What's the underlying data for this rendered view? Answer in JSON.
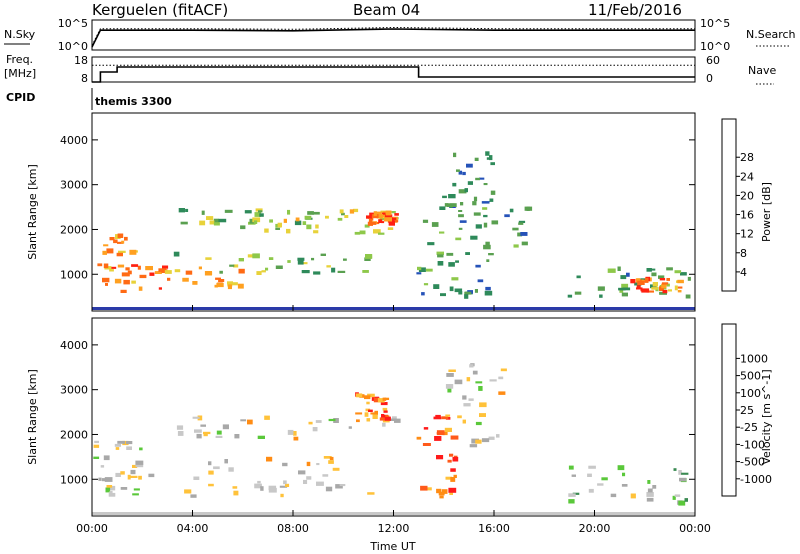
{
  "header": {
    "radar": "Kerguelen (fitACF)",
    "beam": "Beam 04",
    "date": "11/Feb/2016"
  },
  "strip_labels": {
    "nsky": "N.Sky",
    "nsearch": "N.Search",
    "freq": "Freq.",
    "freq_unit": "[MHz]",
    "nave": "Nave",
    "cpid": "CPID",
    "cpid_value": "themis 3300"
  },
  "strip_ticks": {
    "noise_left": [
      "10^5",
      "10^0"
    ],
    "noise_right": [
      "10^5",
      "10^0"
    ],
    "freq_left": [
      "18",
      "8"
    ],
    "freq_right": [
      "60",
      "0"
    ]
  },
  "colors": {
    "power_scale": [
      "#1a1aff",
      "#2552b8",
      "#2e8a5a",
      "#5aa050",
      "#8ec84a",
      "#e8d23a",
      "#ffa020",
      "#ff6a14",
      "#ff2010"
    ],
    "velocity_scale": [
      "#ff1a1a",
      "#ff5a1a",
      "#ff8c14",
      "#ffc23a",
      "#c8c8c8",
      "#a8a8a8",
      "#5ac83a",
      "#3a8a52",
      "#2a58b4",
      "#1a2ad8"
    ]
  },
  "chart_data": [
    {
      "type": "line",
      "name": "noise-strip",
      "x": [
        "00:00",
        "00:20",
        "04:00",
        "08:00",
        "12:00",
        "16:00",
        "20:00",
        "24:00"
      ],
      "series": [
        {
          "name": "N.Sky",
          "values": [
            0.5,
            3.3,
            3.3,
            3.2,
            3.5,
            3.3,
            3.3,
            3.3
          ]
        },
        {
          "name": "N.Search",
          "values": [
            0.5,
            3.3,
            3.3,
            3.2,
            3.5,
            3.3,
            3.3,
            3.3
          ]
        }
      ],
      "ylim_log10": [
        0,
        5
      ]
    },
    {
      "type": "line",
      "name": "freq-nave-strip",
      "x": [
        "00:00",
        "00:20",
        "01:00",
        "13:00",
        "24:00"
      ],
      "series": [
        {
          "name": "Freq.",
          "values": [
            8,
            12,
            14,
            10,
            10
          ]
        },
        {
          "name": "Nave",
          "values": [
            40,
            40,
            40,
            40,
            40
          ]
        }
      ],
      "freq_range": [
        8,
        18
      ],
      "nave_range": [
        0,
        60
      ]
    },
    {
      "type": "heatmap",
      "name": "power-panel",
      "xlabel": "",
      "ylabel": "Slant Range [km]",
      "xlim_hours": [
        0,
        24
      ],
      "ylim": [
        180,
        4600
      ],
      "yticks": [
        "1000",
        "2000",
        "3000",
        "4000"
      ],
      "colorbar_label": "Power [dB]",
      "colorbar_ticks": [
        "4",
        "8",
        "12",
        "16",
        "20",
        "24",
        "28"
      ],
      "regions": [
        {
          "t0": 0.1,
          "t1": 2.0,
          "r0": 600,
          "r1": 1900,
          "level": 0.75
        },
        {
          "t0": 1.5,
          "t1": 6.0,
          "r0": 600,
          "r1": 1200,
          "level": 0.8
        },
        {
          "t0": 3.0,
          "t1": 11.2,
          "r0": 1000,
          "r1": 1500,
          "level": 0.45
        },
        {
          "t0": 3.5,
          "t1": 10.0,
          "r0": 2000,
          "r1": 2450,
          "level": 0.45
        },
        {
          "t0": 6.5,
          "t1": 12.2,
          "r0": 1900,
          "r1": 2450,
          "level": 0.55
        },
        {
          "t0": 11.0,
          "t1": 12.2,
          "r0": 2100,
          "r1": 2400,
          "level": 0.85
        },
        {
          "t0": 13.0,
          "t1": 17.5,
          "r0": 1600,
          "r1": 2500,
          "level": 0.35
        },
        {
          "t0": 13.0,
          "t1": 16.0,
          "r0": 500,
          "r1": 1500,
          "level": 0.3
        },
        {
          "t0": 14.0,
          "t1": 16.0,
          "r0": 2500,
          "r1": 3800,
          "level": 0.25
        },
        {
          "t0": 19.0,
          "t1": 23.8,
          "r0": 500,
          "r1": 1200,
          "level": 0.35
        },
        {
          "t0": 21.5,
          "t1": 23.5,
          "r0": 600,
          "r1": 900,
          "level": 0.8
        }
      ]
    },
    {
      "type": "heatmap",
      "name": "velocity-panel",
      "xlabel": "Time UT",
      "ylabel": "Slant Range [km]",
      "xlim_hours": [
        0,
        24
      ],
      "xticks": [
        "00:00",
        "04:00",
        "08:00",
        "12:00",
        "16:00",
        "20:00",
        "00:00"
      ],
      "ylim": [
        180,
        4600
      ],
      "yticks": [
        "1000",
        "2000",
        "3000",
        "4000"
      ],
      "colorbar_label": "Velocity [m s^-1]",
      "colorbar_ticks": [
        "-1000",
        "-500",
        "-100",
        "-25",
        "25",
        "100",
        "500",
        "1000"
      ],
      "regions": [
        {
          "t0": 0.1,
          "t1": 2.0,
          "r0": 600,
          "r1": 1900,
          "level": 0.5
        },
        {
          "t0": 1.5,
          "t1": 11.2,
          "r0": 600,
          "r1": 1500,
          "level": 0.45
        },
        {
          "t0": 3.5,
          "t1": 12.2,
          "r0": 1900,
          "r1": 2450,
          "level": 0.45
        },
        {
          "t0": 10.5,
          "t1": 11.8,
          "r0": 2300,
          "r1": 2900,
          "level": 0.2
        },
        {
          "t0": 13.0,
          "t1": 14.5,
          "r0": 600,
          "r1": 2400,
          "level": 0.15
        },
        {
          "t0": 14.0,
          "t1": 16.5,
          "r0": 1700,
          "r1": 3600,
          "level": 0.45
        },
        {
          "t0": 19.0,
          "t1": 23.8,
          "r0": 400,
          "r1": 1300,
          "level": 0.55
        }
      ]
    }
  ]
}
